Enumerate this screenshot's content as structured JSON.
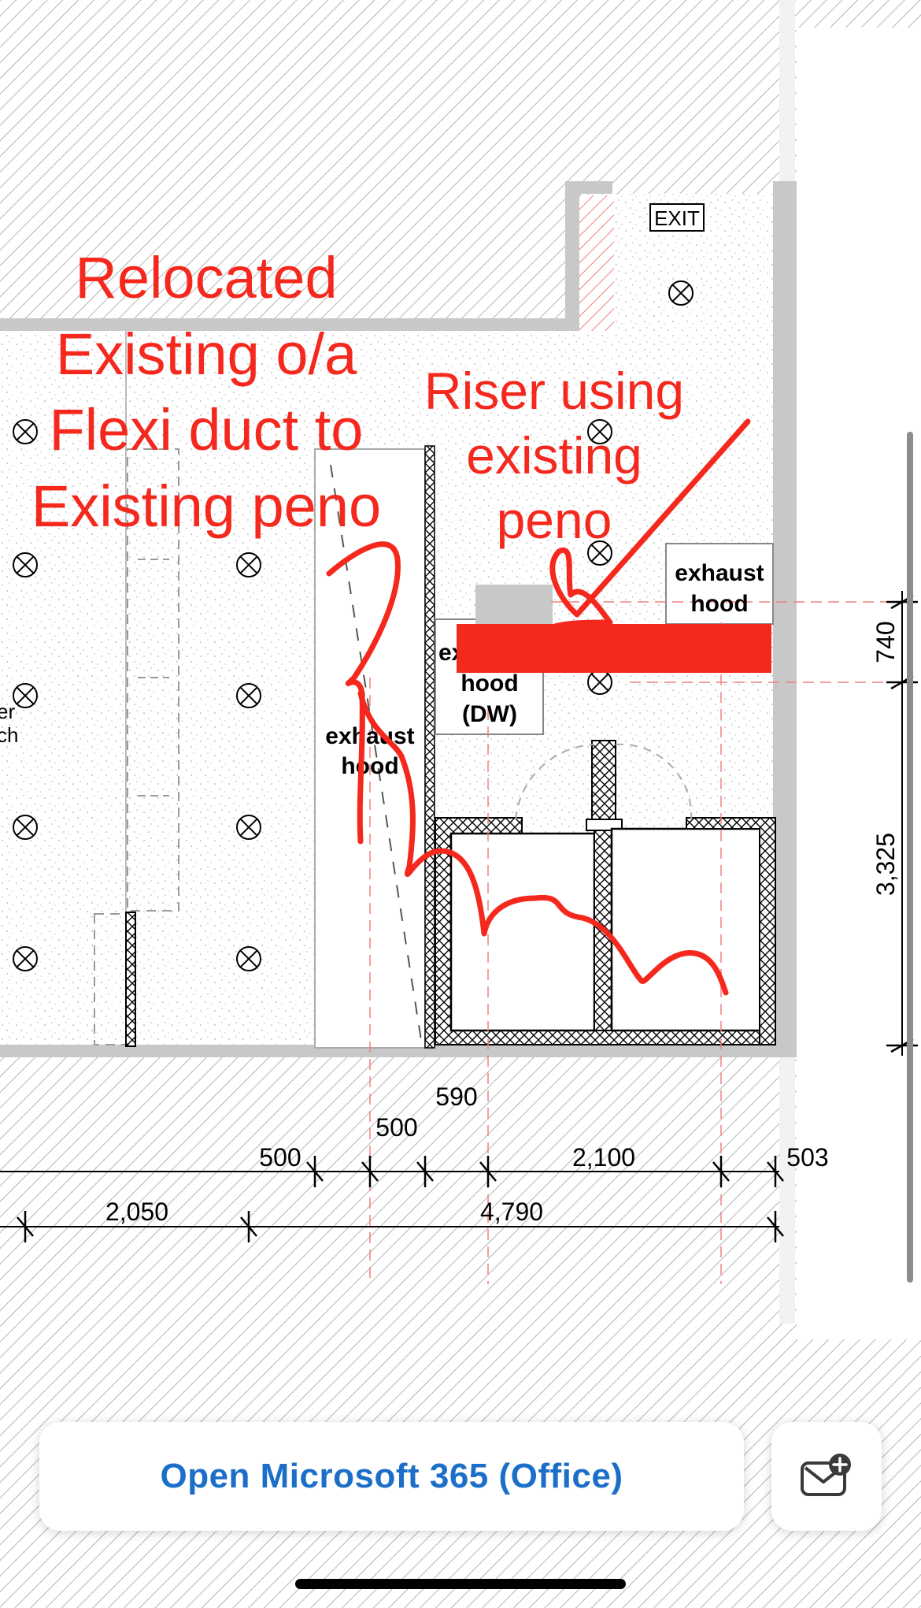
{
  "plan": {
    "exit_sign": "EXIT",
    "hood_right_line1": "exhaust",
    "hood_right_line2": "hood",
    "hood_dw_line1": "ex",
    "hood_dw_line2": "hood",
    "hood_dw_line3": "(DW)",
    "hood_left_line1": "exhaust",
    "hood_left_line2": "hood",
    "partial_label_line1": "er",
    "partial_label_line2": "ch",
    "dims": {
      "d590": "590",
      "d500a": "500",
      "d500b": "500",
      "d2100": "2,100",
      "d503": "503",
      "d2050": "2,050",
      "d4790": "4,790",
      "d740": "740",
      "d3325": "3,325"
    }
  },
  "annotations": {
    "note1_line1": "Relocated",
    "note1_line2": "Existing o/a",
    "note1_line3": "Flexi duct to",
    "note1_line4": "Existing peno",
    "note2_line1": "Riser using",
    "note2_line2": "existing",
    "note2_line3": "peno"
  },
  "bottom_bar": {
    "open_label": "Open Microsoft 365 (Office)",
    "mail_icon": "mail-add-icon"
  },
  "colors": {
    "annotation_red": "#f5281e",
    "link_blue": "#1b6fc8",
    "wall_grey": "#c8c8c8"
  }
}
